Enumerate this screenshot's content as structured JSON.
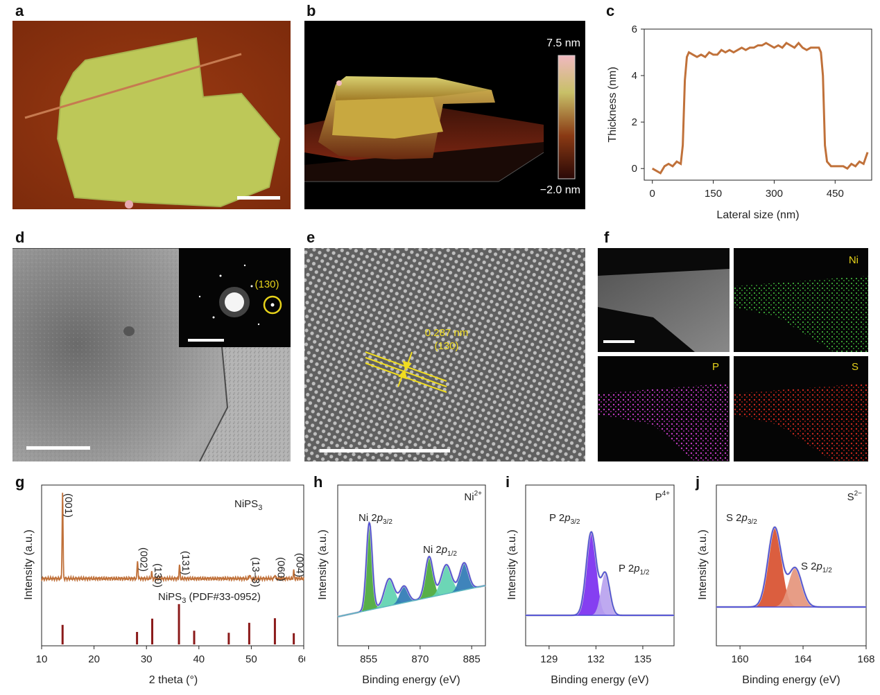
{
  "panels": {
    "a": {
      "letter": "a"
    },
    "b": {
      "letter": "b",
      "colorbar_max": "7.5 nm",
      "colorbar_min": "−2.0 nm"
    },
    "c": {
      "letter": "c"
    },
    "d": {
      "letter": "d",
      "inset_label": "(130)"
    },
    "e": {
      "letter": "e",
      "spacing_label": "0.287 nm",
      "plane_label": "(130)"
    },
    "f": {
      "letter": "f",
      "maps": [
        "Ni",
        "P",
        "S"
      ]
    },
    "g": {
      "letter": "g",
      "sample_label": "NiPS",
      "sample_sub": "3",
      "ref_label_pre": "NiPS",
      "ref_sub": "3",
      "ref_label_post": " (PDF#33-0952)",
      "peak_labels": [
        "(001)",
        "(002)",
        "(130)",
        "(131)",
        "(13–3)",
        "(060)",
        "(004)"
      ]
    },
    "h": {
      "letter": "h",
      "ion": "Ni",
      "ion_sup": "2+",
      "peak1_pre": "Ni 2",
      "peak1_italic": "p",
      "peak1_sub": "3/2",
      "peak2_pre": "Ni 2",
      "peak2_italic": "p",
      "peak2_sub": "1/2"
    },
    "i": {
      "letter": "i",
      "ion": "P",
      "ion_sup": "4+",
      "peak1_pre": "P 2",
      "peak1_italic": "p",
      "peak1_sub": "3/2",
      "peak2_pre": "P 2",
      "peak2_italic": "p",
      "peak2_sub": "1/2"
    },
    "j": {
      "letter": "j",
      "ion": "S",
      "ion_sup": "2−",
      "peak1_pre": "S 2",
      "peak1_italic": "p",
      "peak1_sub": "3/2",
      "peak2_pre": "S 2",
      "peak2_italic": "p",
      "peak2_sub": "1/2"
    }
  },
  "chart_data": [
    {
      "id": "c",
      "type": "line",
      "xlabel": "Lateral size (nm)",
      "ylabel": "Thickness (nm)",
      "xlim": [
        -20,
        540
      ],
      "ylim": [
        -0.5,
        6
      ],
      "xticks": [
        0,
        150,
        300,
        450
      ],
      "yticks": [
        0,
        2,
        4,
        6
      ],
      "color": "#c0713a",
      "x": [
        0,
        10,
        20,
        30,
        40,
        50,
        60,
        70,
        75,
        80,
        85,
        90,
        100,
        110,
        120,
        130,
        140,
        150,
        160,
        170,
        180,
        190,
        200,
        210,
        220,
        230,
        240,
        250,
        260,
        270,
        280,
        290,
        300,
        310,
        320,
        330,
        340,
        350,
        360,
        370,
        380,
        390,
        400,
        410,
        415,
        420,
        425,
        430,
        440,
        450,
        460,
        470,
        480,
        490,
        500,
        510,
        520,
        530
      ],
      "y": [
        0,
        -0.1,
        -0.2,
        0.1,
        0.2,
        0.1,
        0.3,
        0.2,
        1.0,
        3.8,
        4.8,
        5.0,
        4.9,
        4.8,
        4.9,
        4.8,
        5.0,
        4.9,
        4.9,
        5.1,
        5.0,
        5.1,
        5.0,
        5.1,
        5.2,
        5.1,
        5.2,
        5.2,
        5.3,
        5.3,
        5.4,
        5.3,
        5.2,
        5.3,
        5.2,
        5.4,
        5.3,
        5.2,
        5.4,
        5.2,
        5.1,
        5.2,
        5.2,
        5.2,
        5.0,
        4.0,
        1.0,
        0.3,
        0.1,
        0.1,
        0.1,
        0.1,
        0.0,
        0.2,
        0.1,
        0.3,
        0.2,
        0.7
      ]
    },
    {
      "id": "g",
      "type": "line",
      "xlabel": "2 theta (°)",
      "ylabel": "Intensity (a.u.)",
      "xlim": [
        10,
        60
      ],
      "xticks": [
        10,
        20,
        30,
        40,
        50,
        60
      ],
      "color": "#c0713a",
      "peaks": [
        {
          "x": 14.0,
          "h": 1.0
        },
        {
          "x": 28.3,
          "h": 0.21
        },
        {
          "x": 31.0,
          "h": 0.07
        },
        {
          "x": 36.3,
          "h": 0.16
        },
        {
          "x": 49.7,
          "h": 0.05
        },
        {
          "x": 54.5,
          "h": 0.05
        },
        {
          "x": 58.1,
          "h": 0.09
        }
      ],
      "reference_sticks": [
        {
          "x": 14.0,
          "h": 0.47
        },
        {
          "x": 28.2,
          "h": 0.3
        },
        {
          "x": 31.1,
          "h": 0.62
        },
        {
          "x": 36.2,
          "h": 0.97
        },
        {
          "x": 39.1,
          "h": 0.33
        },
        {
          "x": 45.7,
          "h": 0.28
        },
        {
          "x": 49.6,
          "h": 0.52
        },
        {
          "x": 54.5,
          "h": 0.63
        },
        {
          "x": 58.1,
          "h": 0.27
        }
      ],
      "ref_color": "#8b1a1a"
    },
    {
      "id": "h",
      "type": "area",
      "xlabel": "Binding energy (eV)",
      "ylabel": "Intensity (a.u.)",
      "xlim": [
        846,
        889
      ],
      "xticks": [
        855,
        870,
        885
      ],
      "components": [
        {
          "center": 855.2,
          "width": 1.2,
          "height": 0.9,
          "color": "#4aa83a"
        },
        {
          "center": 861.0,
          "width": 2.0,
          "height": 0.28,
          "color": "#5fd2b0"
        },
        {
          "center": 865.3,
          "width": 1.7,
          "height": 0.17,
          "color": "#2f7ab5"
        },
        {
          "center": 872.6,
          "width": 1.6,
          "height": 0.42,
          "color": "#4aa83a"
        },
        {
          "center": 877.6,
          "width": 2.1,
          "height": 0.3,
          "color": "#5fd2b0"
        },
        {
          "center": 882.8,
          "width": 1.8,
          "height": 0.28,
          "color": "#2f7ab5"
        }
      ]
    },
    {
      "id": "i",
      "type": "area",
      "xlabel": "Binding energy (eV)",
      "ylabel": "Intensity (a.u.)",
      "xlim": [
        127.5,
        137
      ],
      "xticks": [
        129,
        132,
        135
      ],
      "components": [
        {
          "center": 131.7,
          "width": 0.45,
          "height": 0.8,
          "color": "#7b2ff0"
        },
        {
          "center": 132.6,
          "width": 0.4,
          "height": 0.4,
          "color": "#b9a2ef"
        }
      ]
    },
    {
      "id": "j",
      "type": "area",
      "xlabel": "Binding energy (eV)",
      "ylabel": "Intensity (a.u.)",
      "xlim": [
        158.5,
        168
      ],
      "xticks": [
        160,
        164,
        168
      ],
      "components": [
        {
          "center": 162.2,
          "width": 0.6,
          "height": 0.82,
          "color": "#d8502f"
        },
        {
          "center": 163.5,
          "width": 0.6,
          "height": 0.4,
          "color": "#e5957c"
        }
      ]
    }
  ]
}
